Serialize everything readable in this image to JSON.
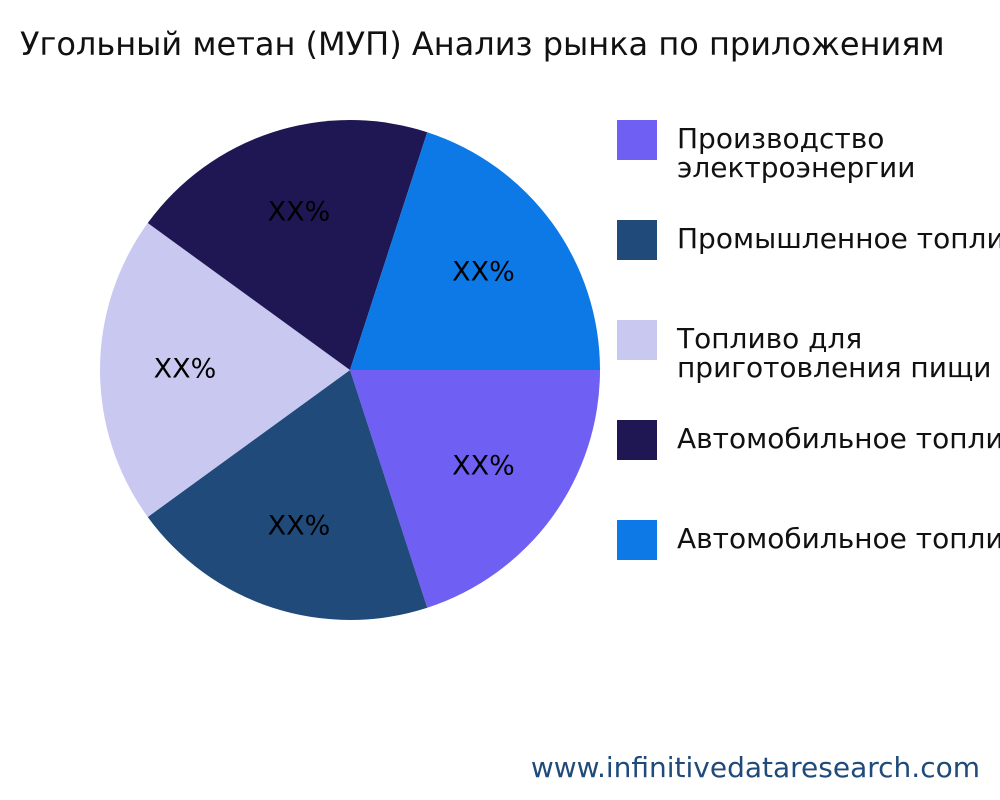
{
  "chart_data": {
    "type": "pie",
    "title": "Угольный метан (МУП) Анализ рынка по приложениям",
    "categories": [
      "Производство электроэнергии",
      "Промышленное топливо",
      "Топливо для приготовления пищи",
      "Автомобильное топливо",
      "Автомобильное топливо"
    ],
    "values": [
      20,
      20,
      20,
      20,
      20
    ],
    "value_labels": [
      "XX%",
      "XX%",
      "XX%",
      "XX%",
      "XX%"
    ],
    "colors": [
      "#6f5ff3",
      "#1f4a7a",
      "#c9c8f0",
      "#1e1754",
      "#0d79e6"
    ],
    "legend": "right",
    "footer": "www.infinitivedataresearch.com"
  }
}
